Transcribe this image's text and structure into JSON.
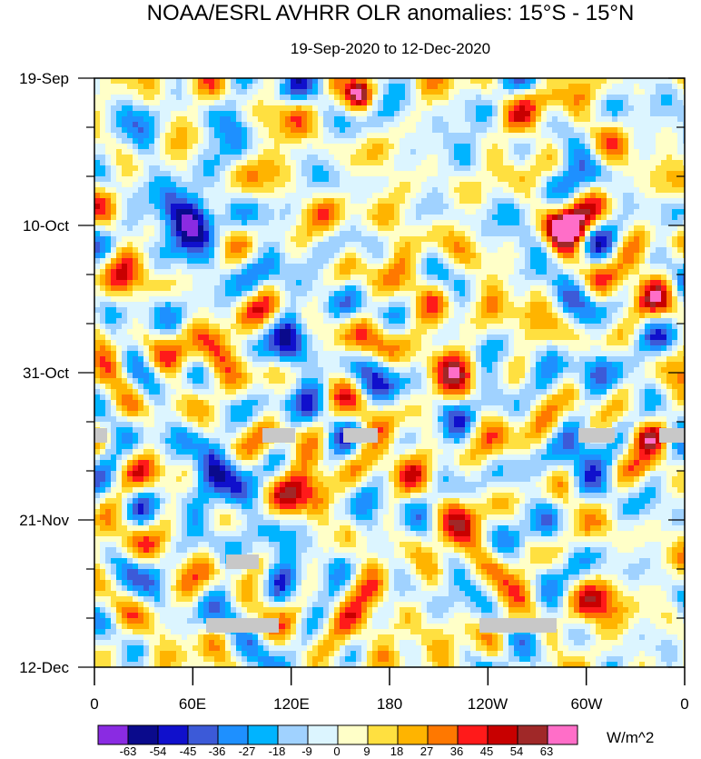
{
  "chart_data": {
    "type": "heatmap",
    "title": "NOAA/ESRL AVHRR OLR anomalies: 15°S - 15°N",
    "subtitle": "19-Sep-2020 to 12-Dec-2020",
    "x_ticks": [
      "0",
      "60E",
      "120E",
      "180",
      "120W",
      "60W",
      "0"
    ],
    "x_range_deg": [
      0,
      360
    ],
    "y_ticks": [
      "19-Sep",
      "10-Oct",
      "31-Oct",
      "21-Nov",
      "12-Dec"
    ],
    "y_range_days": [
      0,
      84
    ],
    "colorbar": {
      "labels": [
        "-63",
        "-54",
        "-45",
        "-36",
        "-27",
        "-18",
        "-9",
        "0",
        "9",
        "18",
        "27",
        "36",
        "45",
        "54",
        "63"
      ],
      "colors": [
        "#8a2be2",
        "#0a0a8c",
        "#1010cc",
        "#3c5ad8",
        "#1e90ff",
        "#00b4ff",
        "#a0d2ff",
        "#dcf5ff",
        "#ffffc8",
        "#ffe040",
        "#ffb400",
        "#ff7800",
        "#ff1a1a",
        "#c80000",
        "#a02828",
        "#ff6ec8"
      ],
      "units": "W/m^2"
    },
    "missing_color": "#c8c8c8"
  }
}
